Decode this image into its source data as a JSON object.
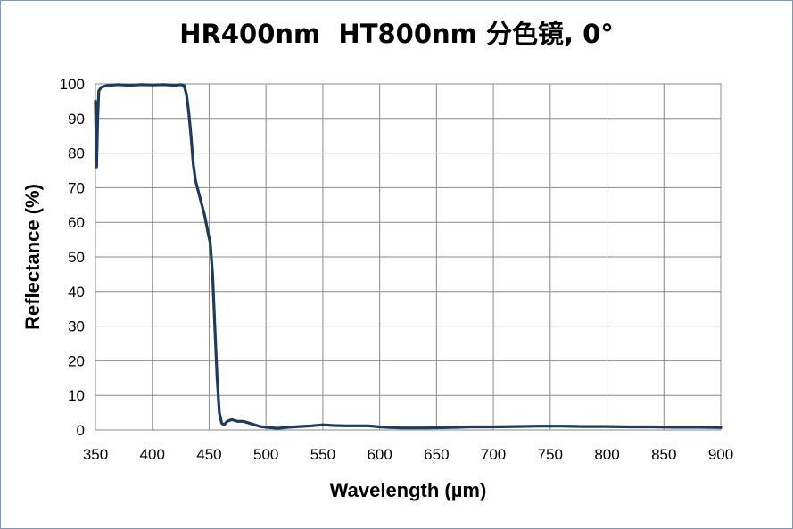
{
  "chart_data": {
    "type": "line",
    "title": "HR400nm  HT800nm 分色镜, 0°",
    "xlabel": "Wavelength (µm)",
    "ylabel": "Reflectance (%)",
    "xlim": [
      350,
      900
    ],
    "ylim": [
      0,
      100
    ],
    "x_ticks": [
      "350",
      "400",
      "450",
      "500",
      "550",
      "600",
      "650",
      "700",
      "750",
      "800",
      "850",
      "900"
    ],
    "y_ticks": [
      "0",
      "10",
      "20",
      "30",
      "40",
      "50",
      "60",
      "70",
      "80",
      "90",
      "100"
    ],
    "grid": true,
    "legend": "none",
    "series": [
      {
        "color": "#1f3a5f",
        "points": [
          [
            350,
            95
          ],
          [
            351,
            76
          ],
          [
            352,
            90
          ],
          [
            353,
            98
          ],
          [
            355,
            99
          ],
          [
            360,
            99.5
          ],
          [
            370,
            99.8
          ],
          [
            380,
            99.6
          ],
          [
            390,
            99.8
          ],
          [
            400,
            99.7
          ],
          [
            410,
            99.8
          ],
          [
            420,
            99.6
          ],
          [
            425,
            99.8
          ],
          [
            428,
            99.5
          ],
          [
            430,
            97
          ],
          [
            432,
            92
          ],
          [
            434,
            85
          ],
          [
            436,
            77
          ],
          [
            438,
            72
          ],
          [
            442,
            67
          ],
          [
            446,
            62
          ],
          [
            449,
            57
          ],
          [
            451,
            54
          ],
          [
            453,
            45
          ],
          [
            455,
            30
          ],
          [
            457,
            15
          ],
          [
            459,
            5
          ],
          [
            461,
            2
          ],
          [
            463,
            1.5
          ],
          [
            466,
            2.5
          ],
          [
            470,
            3
          ],
          [
            475,
            2.5
          ],
          [
            480,
            2.5
          ],
          [
            485,
            2
          ],
          [
            490,
            1.5
          ],
          [
            495,
            1
          ],
          [
            500,
            0.8
          ],
          [
            510,
            0.5
          ],
          [
            520,
            0.8
          ],
          [
            530,
            1
          ],
          [
            540,
            1.2
          ],
          [
            550,
            1.5
          ],
          [
            560,
            1.3
          ],
          [
            570,
            1.2
          ],
          [
            580,
            1.2
          ],
          [
            590,
            1.2
          ],
          [
            600,
            0.9
          ],
          [
            610,
            0.7
          ],
          [
            620,
            0.6
          ],
          [
            640,
            0.6
          ],
          [
            660,
            0.7
          ],
          [
            680,
            0.9
          ],
          [
            700,
            0.9
          ],
          [
            720,
            1
          ],
          [
            740,
            1.1
          ],
          [
            760,
            1.1
          ],
          [
            780,
            1
          ],
          [
            800,
            1
          ],
          [
            820,
            0.9
          ],
          [
            840,
            0.9
          ],
          [
            860,
            0.8
          ],
          [
            880,
            0.8
          ],
          [
            900,
            0.7
          ]
        ]
      }
    ]
  }
}
